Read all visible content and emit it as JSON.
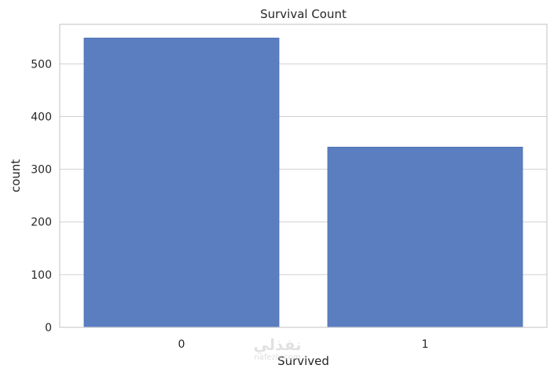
{
  "chart_data": {
    "type": "bar",
    "title": "Survival Count",
    "xlabel": "Survived",
    "ylabel": "count",
    "categories": [
      "0",
      "1"
    ],
    "values": [
      549,
      342
    ],
    "ylim": [
      0,
      575
    ],
    "yticks": [
      0,
      100,
      200,
      300,
      400,
      500
    ],
    "grid": "horizontal",
    "colors": {
      "bar": "#5a7ec0",
      "bar_edge": "#4b6eaf",
      "grid": "#d0d0d0",
      "frame": "#cccccc",
      "text": "#262626"
    }
  },
  "watermark": {
    "brand": "نفذلي",
    "site": "nafezly.com"
  }
}
